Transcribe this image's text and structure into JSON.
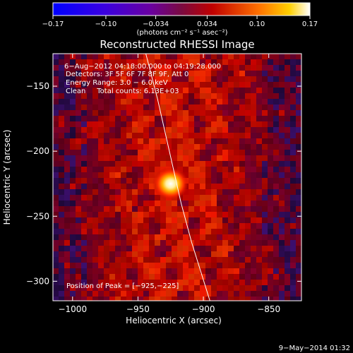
{
  "chart_data": {
    "type": "heatmap",
    "title": "Reconstructed RHESSI Image",
    "xlabel": "Heliocentric X (arcsec)",
    "ylabel": "Heliocentric Y (arcsec)",
    "xlim": [
      -1015,
      -825
    ],
    "ylim": [
      -315,
      -125
    ],
    "x_ticks": [
      -1000,
      -950,
      -900,
      -850
    ],
    "x_tick_labels": [
      "−1000",
      "−950",
      "−900",
      "−850"
    ],
    "y_ticks": [
      -300,
      -250,
      -200,
      -150
    ],
    "y_tick_labels": [
      "−300",
      "−250",
      "−200",
      "−150"
    ],
    "colorbar": {
      "min": -0.17,
      "max": 0.17,
      "ticks": [
        -0.17,
        -0.1,
        -0.034,
        0.034,
        0.1,
        0.17
      ],
      "tick_labels": [
        "−0.17",
        "−0.10",
        "−0.034",
        "0.034",
        "0.10",
        "0.17"
      ],
      "label": "(photons cm⁻² s⁻¹ asec⁻²)",
      "colormap": "blue-purple-red-yellow-white"
    },
    "source": {
      "x": -925,
      "y": -225,
      "peak": 0.17
    },
    "annotations": [
      "6−Aug−2012 04:18:00.000 to 04:19:28.000",
      "Detectors: 3F 5F 6F 7F 8F 9F, Att 0",
      "Energy Range: 3.0 − 6.0 keV",
      "Clean     Total counts: 6.13E+03"
    ],
    "peak_label": "Position of Peak = [−925,−225]",
    "limb_curve": [
      [
        -944,
        -125
      ],
      [
        -935,
        -160
      ],
      [
        -926,
        -200
      ],
      [
        -917,
        -240
      ],
      [
        -909,
        -270
      ],
      [
        -895,
        -315
      ]
    ]
  },
  "footer": {
    "date": "9−May−2014 01:32"
  }
}
